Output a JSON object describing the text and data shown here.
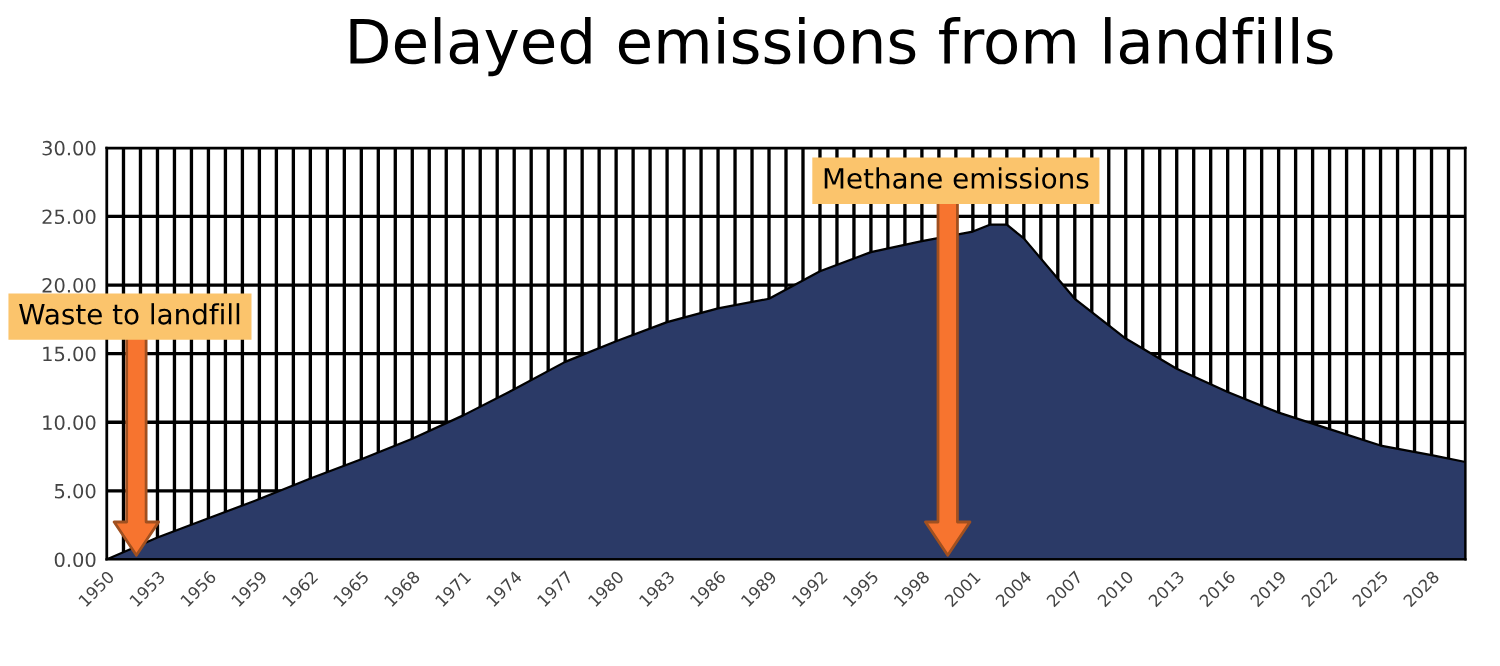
{
  "chart_data": {
    "type": "area",
    "title": "Delayed emissions from landfills",
    "x": [
      1950,
      1953,
      1956,
      1959,
      1962,
      1965,
      1968,
      1971,
      1974,
      1977,
      1980,
      1983,
      1986,
      1989,
      1992,
      1995,
      1998,
      2001,
      2002,
      2003,
      2004,
      2007,
      2010,
      2013,
      2016,
      2019,
      2022,
      2025,
      2028,
      2030
    ],
    "series": [
      {
        "color": "#2b3a67",
        "values": [
          0,
          1.6,
          3.0,
          4.4,
          5.9,
          7.3,
          8.8,
          10.5,
          12.4,
          14.4,
          15.9,
          17.3,
          18.3,
          19.0,
          21.0,
          22.4,
          23.2,
          23.9,
          24.4,
          24.4,
          23.4,
          19.0,
          16.1,
          13.9,
          12.2,
          10.7,
          9.5,
          8.3,
          7.6,
          7.1
        ]
      }
    ],
    "xlim": [
      1950,
      2030
    ],
    "xticks": [
      1950,
      {
        "value": 1951,
        "label": null
      },
      {
        "value": 1952,
        "label": null
      },
      1953,
      {
        "value": 1954,
        "label": null
      },
      {
        "value": 1955,
        "label": null
      },
      1956,
      {
        "value": 1957,
        "label": null
      },
      {
        "value": 1958,
        "label": null
      },
      1959,
      {
        "value": 1960,
        "label": null
      },
      {
        "value": 1961,
        "label": null
      },
      1962,
      {
        "value": 1963,
        "label": null
      },
      {
        "value": 1964,
        "label": null
      },
      1965,
      {
        "value": 1966,
        "label": null
      },
      {
        "value": 1967,
        "label": null
      },
      1968,
      {
        "value": 1969,
        "label": null
      },
      {
        "value": 1970,
        "label": null
      },
      1971,
      {
        "value": 1972,
        "label": null
      },
      {
        "value": 1973,
        "label": null
      },
      1974,
      {
        "value": 1975,
        "label": null
      },
      {
        "value": 1976,
        "label": null
      },
      1977,
      {
        "value": 1978,
        "label": null
      },
      {
        "value": 1979,
        "label": null
      },
      1980,
      {
        "value": 1981,
        "label": null
      },
      {
        "value": 1982,
        "label": null
      },
      1983,
      {
        "value": 1984,
        "label": null
      },
      {
        "value": 1985,
        "label": null
      },
      1986,
      {
        "value": 1987,
        "label": null
      },
      {
        "value": 1988,
        "label": null
      },
      1989,
      {
        "value": 1990,
        "label": null
      },
      {
        "value": 1991,
        "label": null
      },
      1992,
      {
        "value": 1993,
        "label": null
      },
      {
        "value": 1994,
        "label": null
      },
      1995,
      {
        "value": 1996,
        "label": null
      },
      {
        "value": 1997,
        "label": null
      },
      1998,
      {
        "value": 1999,
        "label": null
      },
      {
        "value": 2000,
        "label": null
      },
      2001,
      {
        "value": 2002,
        "label": null
      },
      {
        "value": 2003,
        "label": null
      },
      2004,
      {
        "value": 2005,
        "label": null
      },
      {
        "value": 2006,
        "label": null
      },
      2007,
      {
        "value": 2008,
        "label": null
      },
      {
        "value": 2009,
        "label": null
      },
      2010,
      {
        "value": 2011,
        "label": null
      },
      {
        "value": 2012,
        "label": null
      },
      2013,
      {
        "value": 2014,
        "label": null
      },
      {
        "value": 2015,
        "label": null
      },
      2016,
      {
        "value": 2017,
        "label": null
      },
      {
        "value": 2018,
        "label": null
      },
      2019,
      {
        "value": 2020,
        "label": null
      },
      {
        "value": 2021,
        "label": null
      },
      2022,
      {
        "value": 2023,
        "label": null
      },
      {
        "value": 2024,
        "label": null
      },
      2025,
      {
        "value": 2026,
        "label": null
      },
      {
        "value": 2027,
        "label": null
      },
      2028,
      {
        "value": 2029,
        "label": null
      },
      {
        "value": 2030,
        "label": null
      }
    ],
    "ylim": [
      0,
      30
    ],
    "yticks": [
      {
        "value": 0,
        "label": "0.00"
      },
      {
        "value": 5,
        "label": "5.00"
      },
      {
        "value": 10,
        "label": "10.00"
      },
      {
        "value": 15,
        "label": "15.00"
      },
      {
        "value": 20,
        "label": "20.00"
      },
      {
        "value": 25,
        "label": "25.00"
      },
      {
        "value": 30,
        "label": "30.00"
      }
    ],
    "grid": true,
    "annotations": [
      "Waste to landfill",
      "Methane emissions"
    ]
  }
}
